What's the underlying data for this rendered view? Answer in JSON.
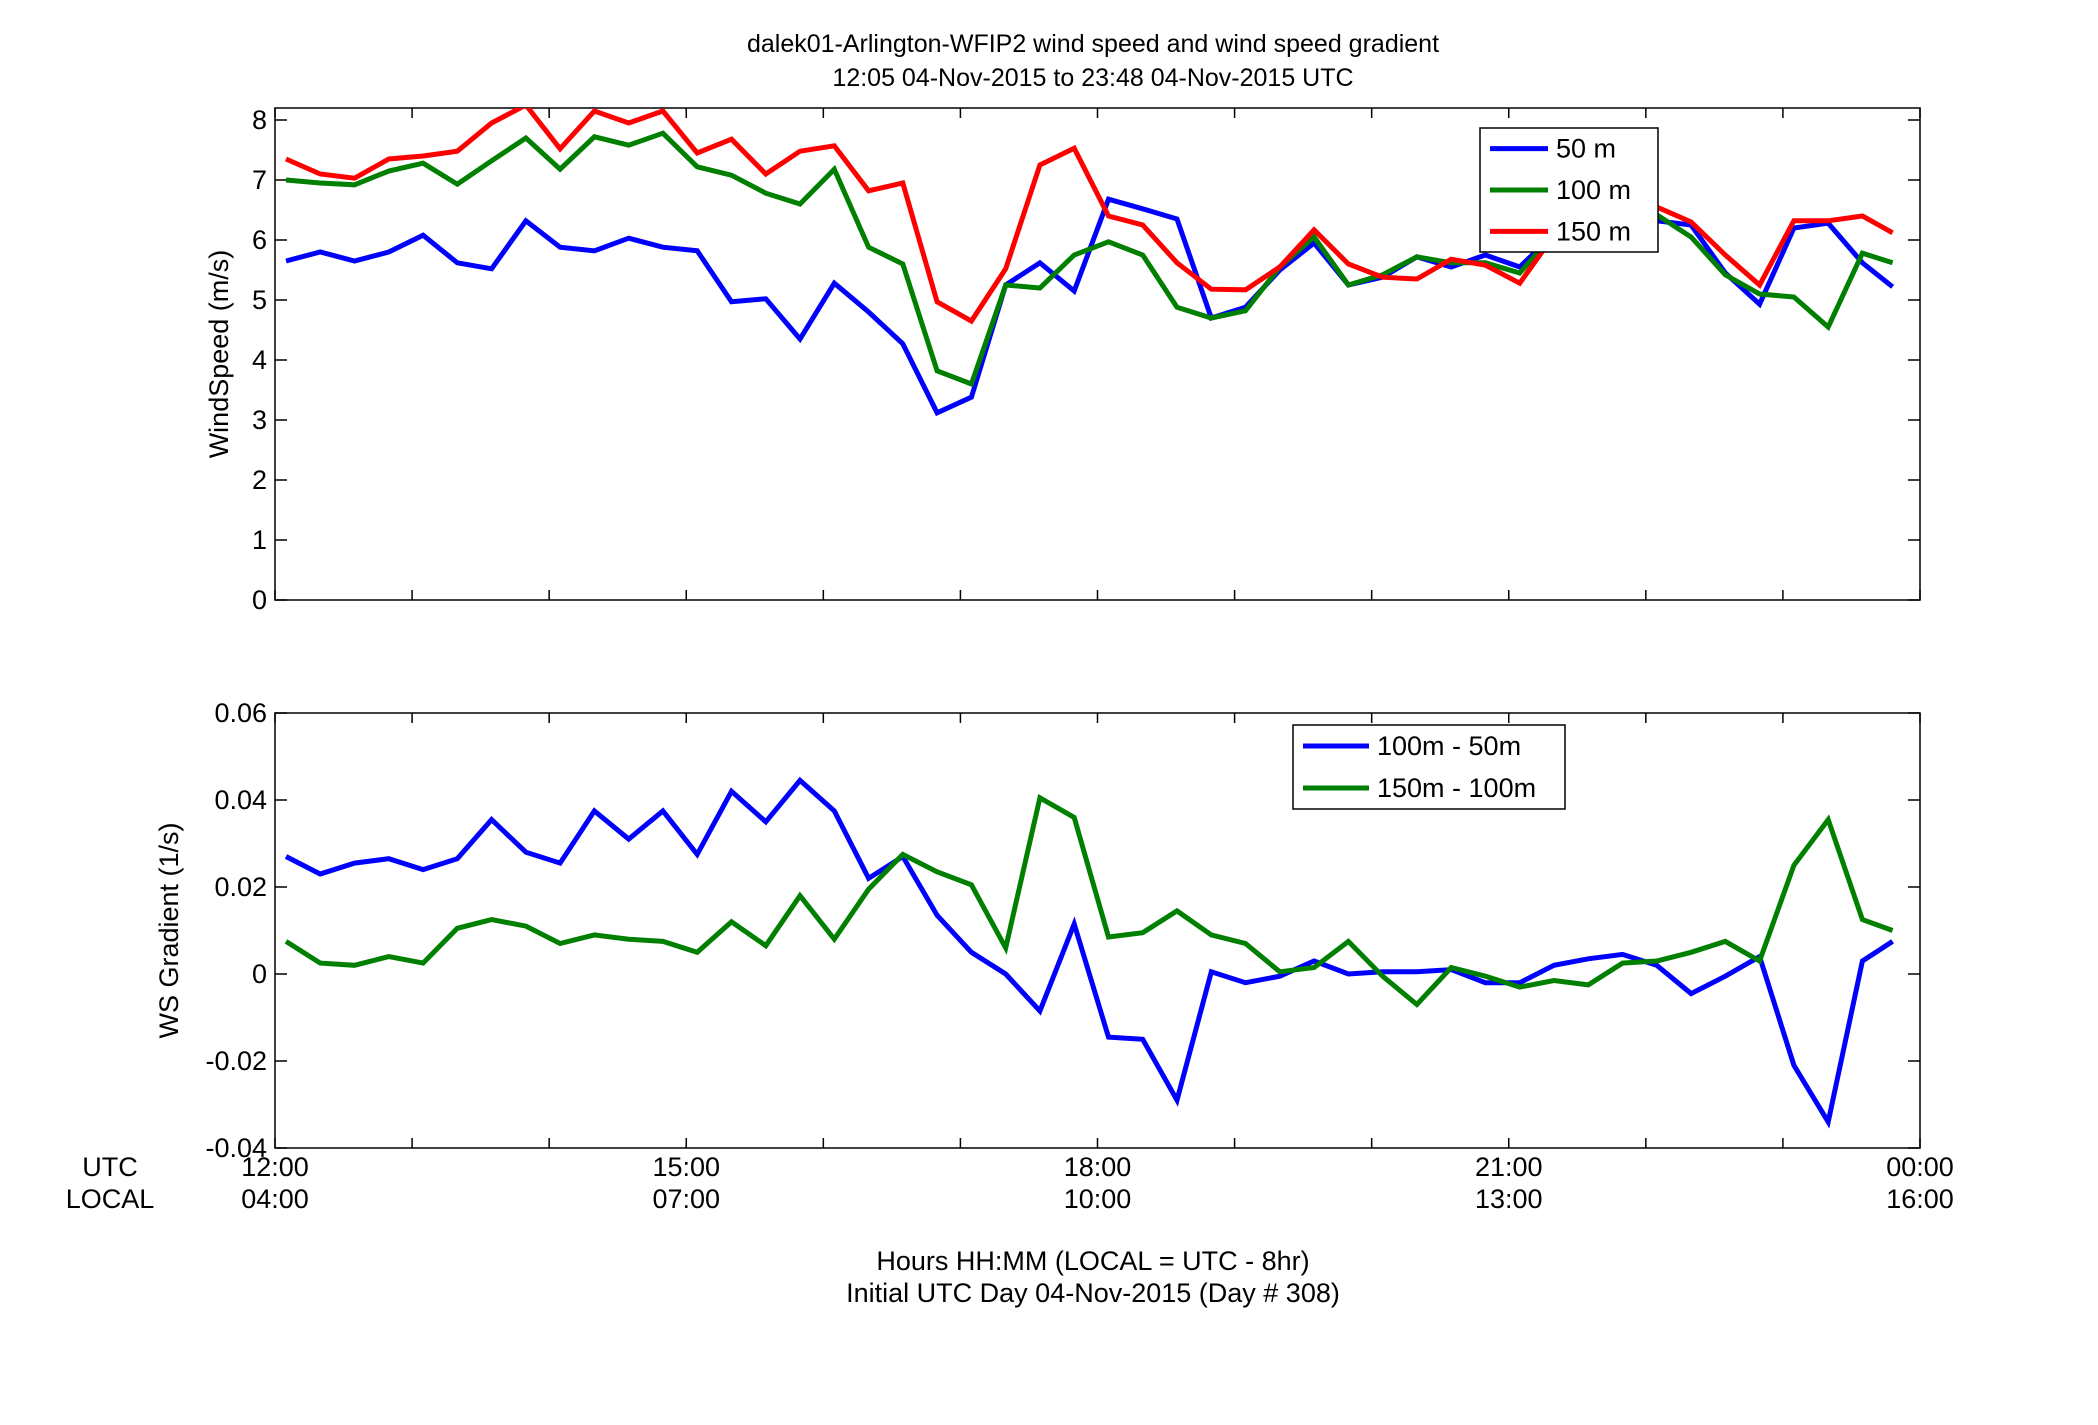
{
  "figure": {
    "title_line1": "dalek01-Arlington-WFIP2  wind speed and wind speed gradient",
    "title_line2": "12:05 04-Nov-2015 to 23:48 04-Nov-2015  UTC",
    "utc_label": "UTC",
    "local_label": "LOCAL",
    "x_ticks_utc": [
      "12:00",
      "15:00",
      "18:00",
      "21:00",
      "00:00"
    ],
    "x_ticks_local": [
      "04:00",
      "07:00",
      "10:00",
      "13:00",
      "16:00"
    ],
    "xlabel_line1": "Hours HH:MM  (LOCAL = UTC - 8hr)",
    "xlabel_line2": "Initial UTC Day 04-Nov-2015 (Day # 308)"
  },
  "colors": {
    "blue": "#0000ff",
    "green": "#007f00",
    "red": "#ff0000"
  },
  "chart_data": [
    {
      "type": "line",
      "title": "",
      "xlabel": "",
      "ylabel": "WindSpeed (m/s)",
      "xlim": [
        12.0,
        24.0
      ],
      "ylim": [
        0,
        8.2
      ],
      "yticks": [
        0,
        1,
        2,
        3,
        4,
        5,
        6,
        7,
        8
      ],
      "ytick_labels": [
        "0",
        "1",
        "2",
        "3",
        "4",
        "5",
        "6",
        "7",
        "8"
      ],
      "grid": false,
      "legend_position": "top-right",
      "x": [
        12.08,
        12.33,
        12.58,
        12.83,
        13.08,
        13.33,
        13.58,
        13.83,
        14.08,
        14.33,
        14.58,
        14.83,
        15.08,
        15.33,
        15.58,
        15.83,
        16.08,
        16.33,
        16.58,
        16.83,
        17.08,
        17.33,
        17.58,
        17.83,
        18.08,
        18.33,
        18.58,
        18.83,
        19.08,
        19.33,
        19.58,
        19.83,
        20.08,
        20.33,
        20.58,
        20.83,
        21.08,
        21.33,
        21.58,
        21.83,
        22.08,
        22.33,
        22.58,
        22.83,
        23.08,
        23.33,
        23.58,
        23.8
      ],
      "series": [
        {
          "name": "50 m",
          "color": "#0000ff",
          "values": [
            5.65,
            5.8,
            5.65,
            5.8,
            6.08,
            5.62,
            5.52,
            6.32,
            5.88,
            5.82,
            6.03,
            5.88,
            5.82,
            4.97,
            5.02,
            4.35,
            5.28,
            4.8,
            4.27,
            3.12,
            3.38,
            5.25,
            5.62,
            5.15,
            6.68,
            6.52,
            6.35,
            4.7,
            4.88,
            5.5,
            5.95,
            5.25,
            5.38,
            5.72,
            5.55,
            5.75,
            5.55,
            6.1,
            6.38,
            6.45,
            6.32,
            6.25,
            5.45,
            4.93,
            6.2,
            6.28,
            5.62,
            5.22
          ]
        },
        {
          "name": "100 m",
          "color": "#007f00",
          "values": [
            7.0,
            6.95,
            6.92,
            7.15,
            7.28,
            6.93,
            7.32,
            7.7,
            7.18,
            7.72,
            7.58,
            7.78,
            7.22,
            7.08,
            6.78,
            6.6,
            7.18,
            5.88,
            5.6,
            3.82,
            3.6,
            5.25,
            5.2,
            5.75,
            5.97,
            5.75,
            4.88,
            4.7,
            4.82,
            5.55,
            6.05,
            5.25,
            5.42,
            5.72,
            5.62,
            5.62,
            5.45,
            6.1,
            6.42,
            6.52,
            6.42,
            6.05,
            5.42,
            5.1,
            5.05,
            4.55,
            5.78,
            5.62
          ]
        },
        {
          "name": "150 m",
          "color": "#ff0000",
          "values": [
            7.35,
            7.1,
            7.03,
            7.35,
            7.4,
            7.48,
            7.95,
            8.25,
            7.52,
            8.15,
            7.95,
            8.15,
            7.45,
            7.68,
            7.1,
            7.48,
            7.57,
            6.82,
            6.95,
            4.97,
            4.65,
            5.52,
            7.25,
            7.53,
            6.4,
            6.25,
            5.62,
            5.18,
            5.17,
            5.55,
            6.17,
            5.6,
            5.38,
            5.35,
            5.68,
            5.58,
            5.28,
            6.08,
            6.3,
            6.42,
            6.55,
            6.3,
            5.75,
            5.25,
            6.32,
            6.32,
            6.4,
            6.12
          ]
        }
      ]
    },
    {
      "type": "line",
      "title": "",
      "xlabel": "",
      "ylabel": "WS Gradient (1/s)",
      "xlim": [
        12.0,
        24.0
      ],
      "ylim": [
        -0.04,
        0.06
      ],
      "yticks": [
        -0.04,
        -0.02,
        0,
        0.02,
        0.04,
        0.06
      ],
      "ytick_labels": [
        "-0.04",
        "-0.02",
        "0",
        "0.02",
        "0.04",
        "0.06"
      ],
      "grid": false,
      "legend_position": "top-right",
      "x": [
        12.08,
        12.33,
        12.58,
        12.83,
        13.08,
        13.33,
        13.58,
        13.83,
        14.08,
        14.33,
        14.58,
        14.83,
        15.08,
        15.33,
        15.58,
        15.83,
        16.08,
        16.33,
        16.58,
        16.83,
        17.08,
        17.33,
        17.58,
        17.83,
        18.08,
        18.33,
        18.58,
        18.83,
        19.08,
        19.33,
        19.58,
        19.83,
        20.08,
        20.33,
        20.58,
        20.83,
        21.08,
        21.33,
        21.58,
        21.83,
        22.08,
        22.33,
        22.58,
        22.83,
        23.08,
        23.33,
        23.58,
        23.8
      ],
      "series": [
        {
          "name": "100m - 50m",
          "color": "#0000ff",
          "values": [
            0.027,
            0.023,
            0.0255,
            0.0265,
            0.024,
            0.0265,
            0.0355,
            0.028,
            0.0255,
            0.0375,
            0.031,
            0.0375,
            0.0275,
            0.042,
            0.035,
            0.0445,
            0.0375,
            0.022,
            0.027,
            0.0135,
            0.005,
            0.0,
            -0.0085,
            0.0115,
            -0.0145,
            -0.015,
            -0.029,
            0.0005,
            -0.002,
            -0.0005,
            0.003,
            0.0,
            0.0005,
            0.0005,
            0.001,
            -0.002,
            -0.002,
            0.002,
            0.0035,
            0.0045,
            0.002,
            -0.0045,
            -0.0005,
            0.004,
            -0.021,
            -0.034,
            0.003,
            0.0075
          ]
        },
        {
          "name": "150m - 100m",
          "color": "#007f00",
          "values": [
            0.0075,
            0.0025,
            0.002,
            0.004,
            0.0025,
            0.0105,
            0.0125,
            0.011,
            0.007,
            0.009,
            0.008,
            0.0075,
            0.005,
            0.012,
            0.0065,
            0.018,
            0.008,
            0.0195,
            0.0275,
            0.0235,
            0.0205,
            0.006,
            0.0405,
            0.036,
            0.0085,
            0.0095,
            0.0145,
            0.009,
            0.007,
            0.0005,
            0.0015,
            0.0075,
            -0.0005,
            -0.007,
            0.0015,
            -0.0005,
            -0.003,
            -0.0015,
            -0.0025,
            0.0025,
            0.003,
            0.005,
            0.0075,
            0.003,
            0.025,
            0.0355,
            0.0125,
            0.01
          ]
        }
      ]
    }
  ]
}
